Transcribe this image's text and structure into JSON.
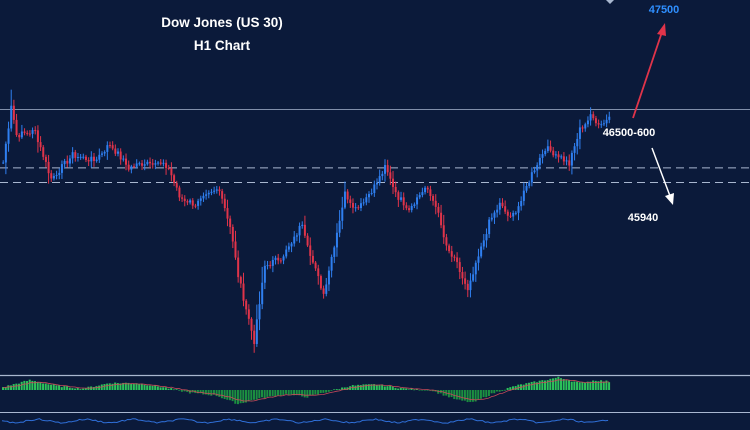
{
  "colors": {
    "background": "#0b1a3a",
    "bull": "#2f7ff0",
    "bear": "#e0344a",
    "hist_pos": "#2cc35a",
    "hist_neg": "#1c8f40",
    "level_line": "#a9b7d0",
    "arrow_up": "#e0344a",
    "arrow_down": "#ffffff",
    "target_up": "#2f8fff",
    "text": "#ffffff"
  },
  "chart_data": {
    "type": "candlestick",
    "title": "Dow Jones (US 30)",
    "subtitle": "H1 Chart",
    "ylim": [
      45640,
      47640
    ],
    "levels": [
      {
        "name": "high",
        "value": 47040
      },
      {
        "name": "support-upper",
        "value": 46720
      },
      {
        "name": "support-lower",
        "value": 46640
      }
    ],
    "annotations": {
      "upper_target": "47500",
      "zone_label": "46500-600",
      "lower_target": "45940"
    },
    "anchors": [
      [
        0,
        46750
      ],
      [
        2,
        46950
      ],
      [
        3,
        47070
      ],
      [
        5,
        46900
      ],
      [
        12,
        46920
      ],
      [
        18,
        46660
      ],
      [
        26,
        46790
      ],
      [
        34,
        46760
      ],
      [
        40,
        46850
      ],
      [
        47,
        46720
      ],
      [
        55,
        46760
      ],
      [
        62,
        46720
      ],
      [
        66,
        46560
      ],
      [
        72,
        46520
      ],
      [
        76,
        46560
      ],
      [
        81,
        46610
      ],
      [
        85,
        46400
      ],
      [
        88,
        46130
      ],
      [
        94,
        45770
      ],
      [
        98,
        46180
      ],
      [
        104,
        46230
      ],
      [
        108,
        46300
      ],
      [
        112,
        46420
      ],
      [
        116,
        46200
      ],
      [
        120,
        46030
      ],
      [
        124,
        46300
      ],
      [
        128,
        46580
      ],
      [
        132,
        46500
      ],
      [
        136,
        46560
      ],
      [
        140,
        46640
      ],
      [
        143,
        46720
      ],
      [
        148,
        46560
      ],
      [
        152,
        46500
      ],
      [
        158,
        46610
      ],
      [
        162,
        46520
      ],
      [
        166,
        46280
      ],
      [
        170,
        46190
      ],
      [
        174,
        46040
      ],
      [
        178,
        46230
      ],
      [
        182,
        46420
      ],
      [
        186,
        46520
      ],
      [
        190,
        46440
      ],
      [
        194,
        46540
      ],
      [
        198,
        46690
      ],
      [
        203,
        46830
      ],
      [
        208,
        46790
      ],
      [
        212,
        46740
      ],
      [
        216,
        46930
      ],
      [
        220,
        47000
      ],
      [
        224,
        46960
      ],
      [
        227,
        47000
      ]
    ]
  },
  "macd_anchors": [
    [
      0,
      0.2
    ],
    [
      10,
      0.7
    ],
    [
      20,
      0.3
    ],
    [
      30,
      0.1
    ],
    [
      40,
      0.5
    ],
    [
      50,
      0.5
    ],
    [
      60,
      0.2
    ],
    [
      70,
      -0.2
    ],
    [
      80,
      -0.4
    ],
    [
      88,
      -1.0
    ],
    [
      96,
      -0.6
    ],
    [
      106,
      -0.3
    ],
    [
      114,
      -0.5
    ],
    [
      122,
      -0.1
    ],
    [
      130,
      0.3
    ],
    [
      140,
      0.4
    ],
    [
      150,
      0.1
    ],
    [
      160,
      0.0
    ],
    [
      170,
      -0.7
    ],
    [
      176,
      -0.9
    ],
    [
      184,
      -0.2
    ],
    [
      192,
      0.3
    ],
    [
      200,
      0.6
    ],
    [
      208,
      0.9
    ],
    [
      216,
      0.5
    ],
    [
      222,
      0.7
    ],
    [
      227,
      0.6
    ]
  ]
}
